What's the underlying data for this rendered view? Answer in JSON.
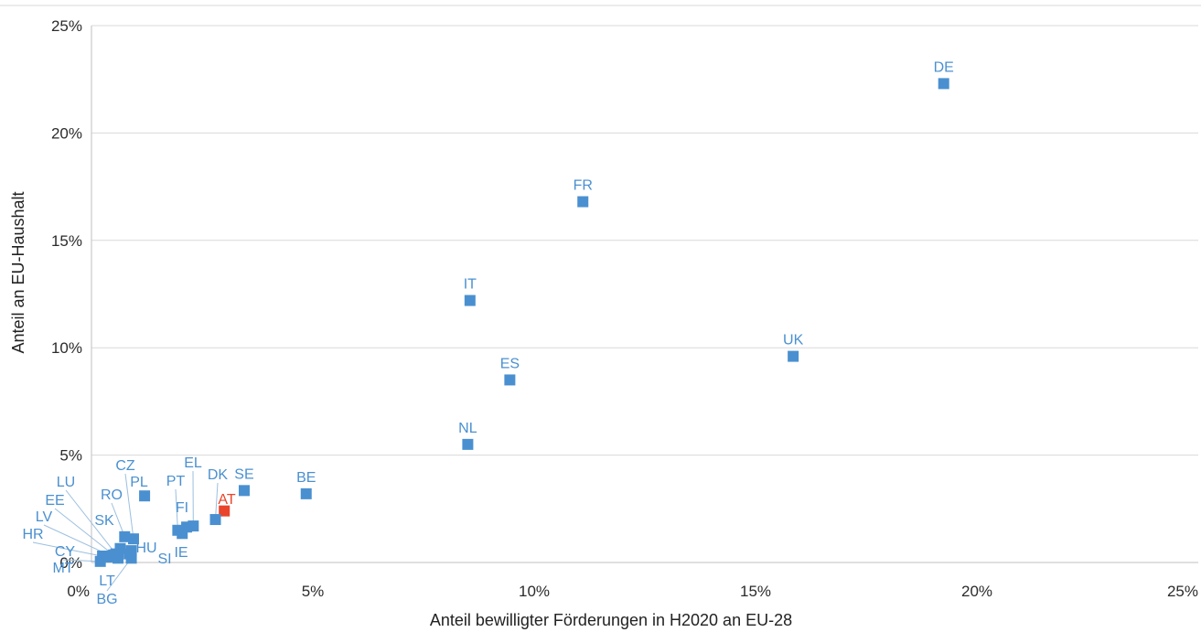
{
  "chart_data": {
    "type": "scatter",
    "title": "",
    "xlabel": "Anteil bewilligter Förderungen in H2020 an EU-28",
    "ylabel": "Anteil an EU-Haushalt",
    "xlim": [
      0,
      25
    ],
    "ylim": [
      0,
      25
    ],
    "xticks": [
      "0%",
      "5%",
      "10%",
      "15%",
      "20%",
      "25%"
    ],
    "yticks": [
      "0%",
      "5%",
      "10%",
      "15%",
      "20%",
      "25%"
    ],
    "grid": "horizontal",
    "legend": "none",
    "colors": {
      "default": "#4a90d0",
      "highlight": "#e8452c",
      "grid": "#d9d9d9",
      "leader": "#9cbfe0"
    },
    "points": [
      {
        "label": "DE",
        "x": 19.25,
        "y": 22.3
      },
      {
        "label": "FR",
        "x": 11.1,
        "y": 16.8
      },
      {
        "label": "IT",
        "x": 8.55,
        "y": 12.2
      },
      {
        "label": "UK",
        "x": 15.85,
        "y": 9.6
      },
      {
        "label": "ES",
        "x": 9.45,
        "y": 8.5
      },
      {
        "label": "NL",
        "x": 8.5,
        "y": 5.5
      },
      {
        "label": "BE",
        "x": 4.85,
        "y": 3.2
      },
      {
        "label": "SE",
        "x": 3.45,
        "y": 3.35
      },
      {
        "label": "PL",
        "x": 1.2,
        "y": 3.1
      },
      {
        "label": "AT",
        "x": 3.0,
        "y": 2.4,
        "highlight": true
      },
      {
        "label": "DK",
        "x": 2.8,
        "y": 2.0
      },
      {
        "label": "EL",
        "x": 2.3,
        "y": 1.7
      },
      {
        "label": "PT",
        "x": 1.95,
        "y": 1.5
      },
      {
        "label": "FI",
        "x": 2.15,
        "y": 1.65
      },
      {
        "label": "IE",
        "x": 2.05,
        "y": 1.35
      },
      {
        "label": "CZ",
        "x": 0.95,
        "y": 1.1
      },
      {
        "label": "RO",
        "x": 0.75,
        "y": 1.2
      },
      {
        "label": "SK",
        "x": 0.65,
        "y": 0.65
      },
      {
        "label": "HU",
        "x": 0.9,
        "y": 0.55
      },
      {
        "label": "SI",
        "x": 0.85,
        "y": 0.4
      },
      {
        "label": "BG",
        "x": 0.9,
        "y": 0.2
      },
      {
        "label": "LT",
        "x": 0.6,
        "y": 0.2
      },
      {
        "label": "MT",
        "x": 0.2,
        "y": 0.05
      },
      {
        "label": "CY",
        "x": 0.25,
        "y": 0.3
      },
      {
        "label": "HR",
        "x": 0.35,
        "y": 0.25
      },
      {
        "label": "LV",
        "x": 0.45,
        "y": 0.3
      },
      {
        "label": "EE",
        "x": 0.5,
        "y": 0.35
      },
      {
        "label": "LU",
        "x": 0.55,
        "y": 0.4
      }
    ]
  }
}
